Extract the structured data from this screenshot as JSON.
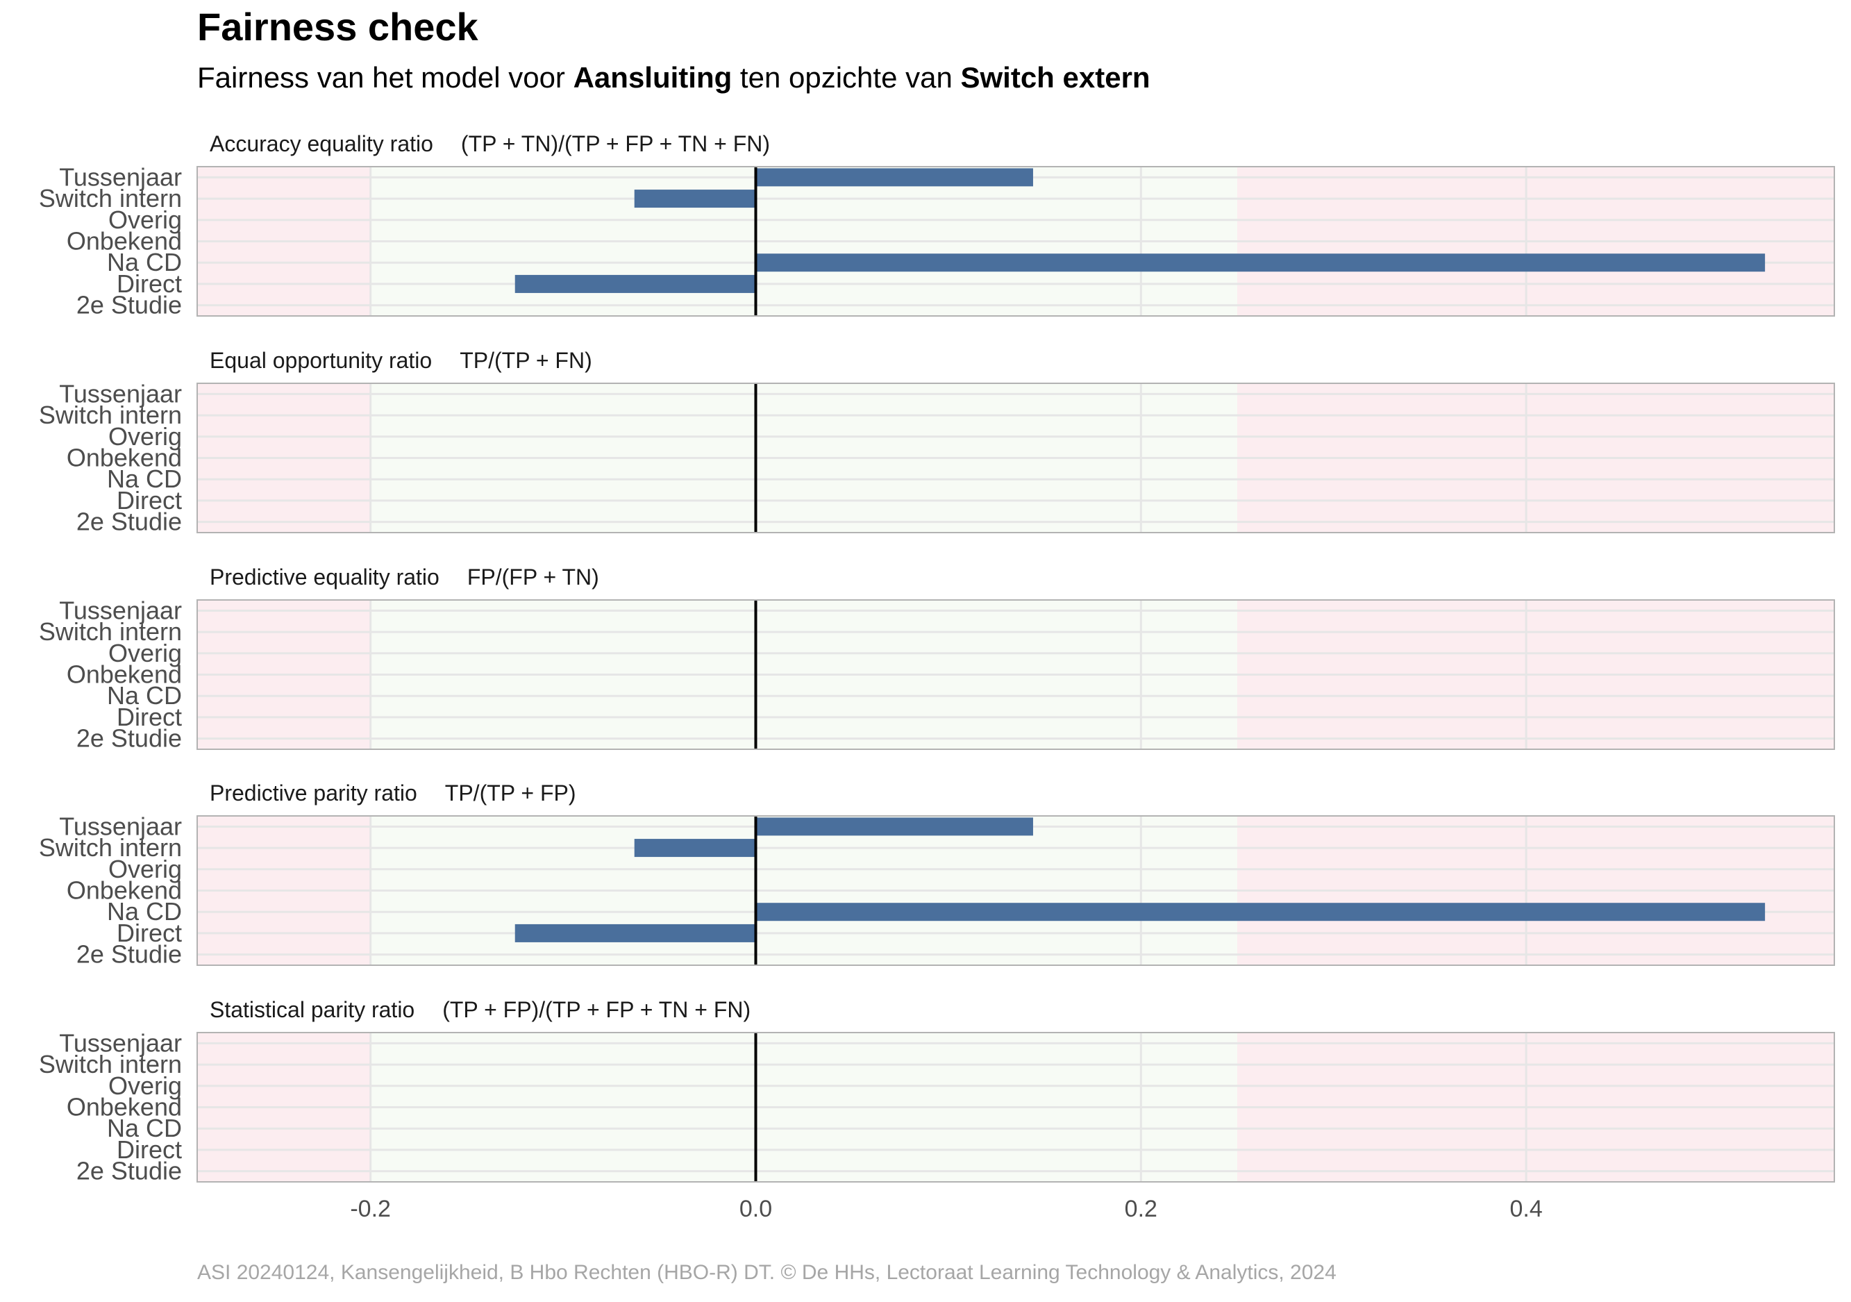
{
  "title": "Fairness check",
  "subtitle": {
    "prefix": "Fairness van het model voor ",
    "model": "Aansluiting",
    "middle": " ten opzichte van ",
    "group": "Switch extern"
  },
  "caption": "ASI 20240124, Kansengelijkheid, B Hbo Rechten (HBO-R) DT. © De HHs, Lectoraat Learning Technology & Analytics, 2024",
  "colors": {
    "bar": "#4a6f9c",
    "fair_zone": "#f7fbf5",
    "unfair_zone": "#fcedf0",
    "grid": "#e6e6e6",
    "zero_line": "#000000",
    "panel_border": "#b3b3b3"
  },
  "chart_data": {
    "type": "bar",
    "orientation": "horizontal",
    "categories": [
      "Tussenjaar",
      "Switch intern",
      "Overig",
      "Onbekend",
      "Na CD",
      "Direct",
      "2e Studie"
    ],
    "xlim": [
      -0.29,
      0.56
    ],
    "x_ticks": [
      -0.2,
      0.0,
      0.2,
      0.4
    ],
    "x_tick_labels": [
      "-0.2",
      "0.0",
      "0.2",
      "0.4"
    ],
    "fair_range": [
      -0.2,
      0.25
    ],
    "grid": true,
    "panels": [
      {
        "name": "Accuracy equality ratio",
        "formula": "(TP + TN)/(TP + FP + TN + FN)",
        "values": [
          0.144,
          -0.063,
          null,
          null,
          0.524,
          -0.125,
          null
        ]
      },
      {
        "name": "Equal opportunity ratio",
        "formula": "TP/(TP + FN)",
        "values": [
          null,
          null,
          null,
          null,
          null,
          null,
          null
        ]
      },
      {
        "name": "Predictive equality ratio",
        "formula": "FP/(FP + TN)",
        "values": [
          null,
          null,
          null,
          null,
          null,
          null,
          null
        ]
      },
      {
        "name": "Predictive parity ratio",
        "formula": "TP/(TP + FP)",
        "values": [
          0.144,
          -0.063,
          null,
          null,
          0.524,
          -0.125,
          null
        ]
      },
      {
        "name": "Statistical parity ratio",
        "formula": "(TP + FP)/(TP + FP + TN + FN)",
        "values": [
          null,
          null,
          null,
          null,
          null,
          null,
          null
        ]
      }
    ]
  }
}
